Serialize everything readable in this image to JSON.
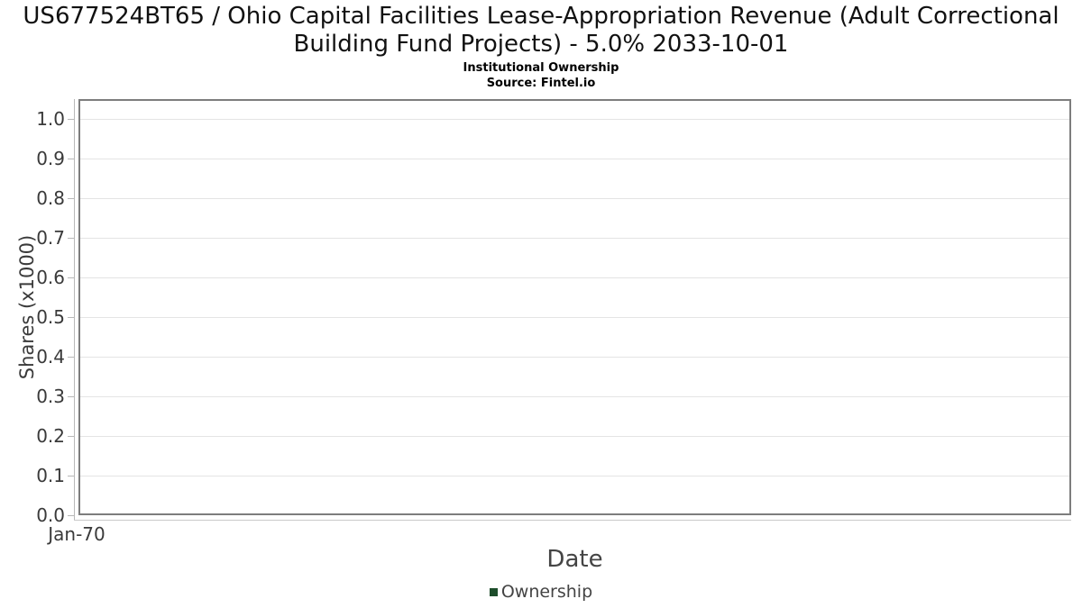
{
  "header": {
    "title": "US677524BT65 / Ohio Capital Facilities Lease-Appropriation Revenue (Adult Correctional Building Fund Projects) - 5.0% 2033-10-01",
    "subtitle": "Institutional Ownership",
    "source": "Source: Fintel.io"
  },
  "chart_data": {
    "type": "line",
    "title": "US677524BT65 / Ohio Capital Facilities Lease-Appropriation Revenue (Adult Correctional Building Fund Projects) - 5.0% 2033-10-01",
    "subtitle": "Institutional Ownership",
    "source": "Source: Fintel.io",
    "xlabel": "Date",
    "ylabel": "Shares (x1000)",
    "x_tick_labels": [
      "Jan-70"
    ],
    "y_tick_labels": [
      "0.0",
      "0.1",
      "0.2",
      "0.3",
      "0.4",
      "0.5",
      "0.6",
      "0.7",
      "0.8",
      "0.9",
      "1.0"
    ],
    "ylim": [
      0.0,
      1.05
    ],
    "grid": true,
    "legend": {
      "position": "bottom",
      "entries": [
        {
          "label": "Ownership",
          "color": "#1d4d2b"
        }
      ]
    },
    "series": [
      {
        "name": "Ownership",
        "color": "#1d4d2b",
        "points": []
      }
    ]
  },
  "colors": {
    "background": "#ffffff",
    "frame_border": "#7d7d7d",
    "gridline": "#e4e4e4",
    "axis_line": "#b8b8b8",
    "tick_text": "#3a3a3a",
    "axis_label_text": "#444444",
    "title_text": "#111111",
    "legend_marker": "#1d4d2b"
  }
}
